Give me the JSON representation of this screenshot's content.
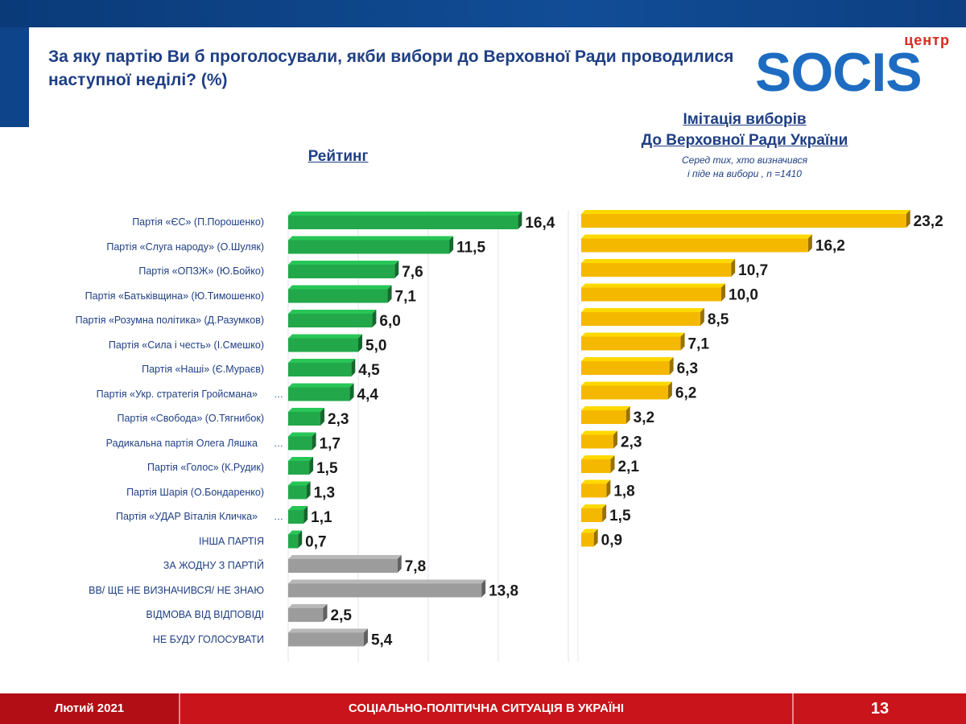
{
  "header": {
    "title": "За яку партію Ви б проголосували, якби вибори до Верховної Ради проводилися наступної неділі? (%)"
  },
  "logo": {
    "small": "центр",
    "main": "SOCIS",
    "sub": ""
  },
  "colors": {
    "green": "#22a84a",
    "gold": "#f5b800",
    "gray": "#9c9c9c",
    "navy": "#1f3f84",
    "red": "#c8141a"
  },
  "chart_data": [
    {
      "type": "bar",
      "orientation": "horizontal",
      "title": "Рейтинг",
      "categories": [
        "Партія «ЄС» (П.Порошенко)",
        "Партія «Слуга народу» (О.Шуляк)",
        "Партія «ОПЗЖ» (Ю.Бойко)",
        "Партія «Батьківщина» (Ю.Тимошенко)",
        "Партія «Розумна політика» (Д.Разумков)",
        "Партія «Сила і честь» (І.Смешко)",
        "Партія «Наші» (Є.Мураєв)",
        "Партія «Укр. стратегія Гройсмана»",
        "Партія «Свобода» (О.Тягнибок)",
        "Радикальна партія Олега Ляшка",
        "Партія «Голос» (К.Рудик)",
        "Партія Шарія (О.Бондаренко)",
        "Партія «УДАР Віталія Кличка»",
        "ІНША ПАРТІЯ",
        "ЗА ЖОДНУ З ПАРТІЙ",
        "ВВ/ ЩЕ НЕ ВИЗНАЧИВСЯ/ НЕ ЗНАЮ",
        "ВІДМОВА ВІД ВІДПОВІДІ",
        "НЕ БУДУ ГОЛОСУВАТИ"
      ],
      "truncated_marker": [
        "",
        "",
        "",
        "",
        "",
        "",
        "",
        "…",
        "",
        "…",
        "",
        "",
        "…",
        "",
        "",
        "",
        "",
        ""
      ],
      "values": [
        16.4,
        11.5,
        7.6,
        7.1,
        6.0,
        5.0,
        4.5,
        4.4,
        2.3,
        1.7,
        1.5,
        1.3,
        1.1,
        0.7,
        7.8,
        13.8,
        2.5,
        5.4
      ],
      "value_labels": [
        "16,4",
        "11,5",
        "7,6",
        "7,1",
        "6,0",
        "5,0",
        "4,5",
        "4,4",
        "2,3",
        "1,7",
        "1,5",
        "1,3",
        "1,1",
        "0,7",
        "7,8",
        "13,8",
        "2,5",
        "5,4"
      ],
      "bar_colors": [
        "green",
        "green",
        "green",
        "green",
        "green",
        "green",
        "green",
        "green",
        "green",
        "green",
        "green",
        "green",
        "green",
        "green",
        "gray",
        "gray",
        "gray",
        "gray"
      ],
      "xlim": [
        0,
        20
      ],
      "grid": true
    },
    {
      "type": "bar",
      "orientation": "horizontal",
      "title": "Імітація виборів До Верховної Ради України",
      "subtitle": "Серед тих, хто визначився і піде на вибори , n =1410",
      "categories": [
        "Партія «ЄС» (П.Порошенко)",
        "Партія «Слуга народу» (О.Шуляк)",
        "Партія «ОПЗЖ» (Ю.Бойко)",
        "Партія «Батьківщина» (Ю.Тимошенко)",
        "Партія «Розумна політика» (Д.Разумков)",
        "Партія «Сила і честь» (І.Смешко)",
        "Партія «Наші» (Є.Мураєв)",
        "Партія «Укр. стратегія Гройсмана»",
        "Партія «Свобода» (О.Тягнибок)",
        "Радикальна партія Олега Ляшка",
        "Партія «Голос» (К.Рудик)",
        "Партія Шарія (О.Бондаренко)",
        "Партія «УДАР Віталія Кличка»",
        "ІНША ПАРТІЯ"
      ],
      "values": [
        23.2,
        16.2,
        10.7,
        10.0,
        8.5,
        7.1,
        6.3,
        6.2,
        3.2,
        2.3,
        2.1,
        1.8,
        1.5,
        0.9
      ],
      "value_labels": [
        "23,2",
        "16,2",
        "10,7",
        "10,0",
        "8,5",
        "7,1",
        "6,3",
        "6,2",
        "3,2",
        "2,3",
        "2,1",
        "1,8",
        "1,5",
        "0,9"
      ],
      "bar_color": "gold",
      "grid": false
    }
  ],
  "headings": {
    "rating": "Рейтинг",
    "simulation_line1": "Імітація виборів",
    "simulation_line2": "До Верховної Ради України",
    "note_line1": "Серед тих, хто визначився",
    "note_line2": "і піде на вибори , n =1410"
  },
  "footer": {
    "date": "Лютий 2021",
    "title": "СОЦІАЛЬНО-ПОЛІТИЧНА СИТУАЦІЯ В УКРАЇНІ",
    "page": "13"
  }
}
